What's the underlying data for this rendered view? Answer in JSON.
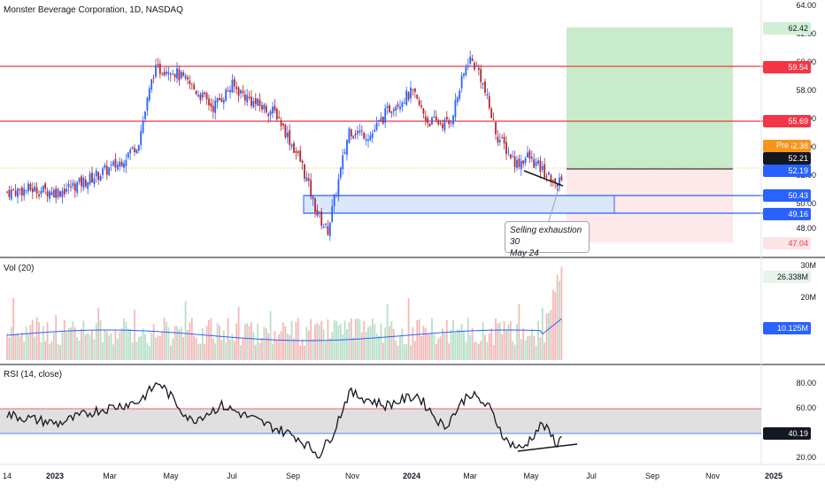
{
  "header": {
    "title": "Monster Beverage Corporation, 1D, NASDAQ"
  },
  "panes": {
    "volume_label": "Vol (20)",
    "rsi_label": "RSI (14, close)"
  },
  "price_axis": {
    "ticks": [
      "64.00",
      "62.00",
      "60.00",
      "58.00",
      "56.00",
      "54.00",
      "52.00",
      "50.00",
      "48.00"
    ],
    "tags": [
      {
        "text": "62.42",
        "color": "#d1f0d6",
        "fg": "#131722"
      },
      {
        "text": "59.54",
        "color": "#f23645",
        "fg": "#ffffff"
      },
      {
        "text": "55.69",
        "color": "#f23645",
        "fg": "#ffffff"
      },
      {
        "text": "52.38",
        "color": "#f7941d",
        "fg": "#ffffff"
      },
      {
        "text": "52.21",
        "color": "#131722",
        "fg": "#ffffff"
      },
      {
        "text": "52.19",
        "color": "#2962ff",
        "fg": "#ffffff"
      },
      {
        "text": "50.43",
        "color": "#2962ff",
        "fg": "#ffffff"
      },
      {
        "text": "49.16",
        "color": "#2962ff",
        "fg": "#ffffff"
      },
      {
        "text": "47.04",
        "color": "#fde4e4",
        "fg": "#f23645"
      }
    ],
    "pre_label": "Pre"
  },
  "volume_axis": {
    "ticks": [
      "30M",
      "20M"
    ],
    "tags": [
      {
        "text": "26.338M",
        "color": "#e6f4ea",
        "fg": "#131722"
      },
      {
        "text": "10.125M",
        "color": "#2962ff",
        "fg": "#ffffff"
      }
    ]
  },
  "rsi_axis": {
    "ticks": [
      "80.00",
      "60.00",
      "20.00"
    ],
    "tags": [
      {
        "text": "40.19",
        "color": "#131722",
        "fg": "#ffffff"
      }
    ]
  },
  "time_axis": {
    "labels": [
      "14",
      "2023",
      "Mar",
      "May",
      "Jul",
      "Sep",
      "Nov",
      "2024",
      "Mar",
      "May",
      "Jul",
      "Sep",
      "Nov",
      "2025"
    ]
  },
  "annotation": {
    "line1": "Selling exhaustion 30",
    "line2": "May 24"
  },
  "colors": {
    "up": "#2962ff",
    "down": "#b22833",
    "resistance": "#f23645",
    "support": "#2962ff",
    "target_zone": "#c8ebcb",
    "stop_zone": "#fde9e9",
    "rsi_band": "#e0e0e0",
    "volume_ma": "#2962ff"
  },
  "chart_data": [
    {
      "type": "candlestick",
      "title": "Monster Beverage Corporation, 1D, NASDAQ",
      "ylim": [
        46,
        64
      ],
      "x_range": [
        "2022-11",
        "2025-01"
      ],
      "close_path": [
        {
          "d": "2022-12-14",
          "c": 51.0
        },
        {
          "d": "2023-01-05",
          "c": 51.2
        },
        {
          "d": "2023-02-01",
          "c": 51.0
        },
        {
          "d": "2023-03-01",
          "c": 51.8
        },
        {
          "d": "2023-04-01",
          "c": 53.0
        },
        {
          "d": "2023-04-20",
          "c": 54.5
        },
        {
          "d": "2023-05-05",
          "c": 59.5
        },
        {
          "d": "2023-05-20",
          "c": 59.8
        },
        {
          "d": "2023-06-10",
          "c": 58.5
        },
        {
          "d": "2023-07-01",
          "c": 57.0
        },
        {
          "d": "2023-07-20",
          "c": 58.5
        },
        {
          "d": "2023-08-10",
          "c": 57.3
        },
        {
          "d": "2023-09-01",
          "c": 56.5
        },
        {
          "d": "2023-09-25",
          "c": 53.0
        },
        {
          "d": "2023-10-10",
          "c": 49.5
        },
        {
          "d": "2023-10-20",
          "c": 48.2
        },
        {
          "d": "2023-11-01",
          "c": 52.2
        },
        {
          "d": "2023-11-10",
          "c": 55.4
        },
        {
          "d": "2023-12-01",
          "c": 55.0
        },
        {
          "d": "2023-12-20",
          "c": 57.0
        },
        {
          "d": "2024-01-10",
          "c": 58.0
        },
        {
          "d": "2024-01-25",
          "c": 56.0
        },
        {
          "d": "2024-02-15",
          "c": 55.8
        },
        {
          "d": "2024-03-05",
          "c": 60.5
        },
        {
          "d": "2024-03-15",
          "c": 59.5
        },
        {
          "d": "2024-04-01",
          "c": 55.0
        },
        {
          "d": "2024-04-20",
          "c": 53.0
        },
        {
          "d": "2024-05-01",
          "c": 53.5
        },
        {
          "d": "2024-05-15",
          "c": 52.5
        },
        {
          "d": "2024-05-30",
          "c": 51.5
        },
        {
          "d": "2024-06-04",
          "c": 52.2
        }
      ],
      "levels": [
        {
          "name": "target",
          "value": 62.42
        },
        {
          "name": "resistance",
          "value": 59.54
        },
        {
          "name": "resistance",
          "value": 55.69
        },
        {
          "name": "entry",
          "value": 52.21
        },
        {
          "name": "support",
          "value": 50.43
        },
        {
          "name": "support",
          "value": 49.16
        },
        {
          "name": "stop",
          "value": 47.04
        }
      ]
    },
    {
      "type": "bar",
      "title": "Vol (20)",
      "ylim": [
        0,
        30
      ],
      "last_volume_m": 26.338,
      "volume_ma_m": 10.125
    },
    {
      "type": "line",
      "title": "RSI (14, close)",
      "ylim": [
        20,
        80
      ],
      "band": [
        40,
        60
      ],
      "last_value": 40.19,
      "path": [
        {
          "d": "2022-12-14",
          "v": 55
        },
        {
          "d": "2023-02-01",
          "v": 48
        },
        {
          "d": "2023-03-10",
          "v": 58
        },
        {
          "d": "2023-04-20",
          "v": 65
        },
        {
          "d": "2023-05-10",
          "v": 80
        },
        {
          "d": "2023-06-10",
          "v": 50
        },
        {
          "d": "2023-07-10",
          "v": 62
        },
        {
          "d": "2023-08-20",
          "v": 48
        },
        {
          "d": "2023-09-20",
          "v": 38
        },
        {
          "d": "2023-10-12",
          "v": 24
        },
        {
          "d": "2023-10-25",
          "v": 40
        },
        {
          "d": "2023-11-10",
          "v": 72
        },
        {
          "d": "2023-12-15",
          "v": 62
        },
        {
          "d": "2024-01-15",
          "v": 70
        },
        {
          "d": "2024-02-10",
          "v": 45
        },
        {
          "d": "2024-03-05",
          "v": 72
        },
        {
          "d": "2024-03-25",
          "v": 60
        },
        {
          "d": "2024-04-10",
          "v": 35
        },
        {
          "d": "2024-04-25",
          "v": 28
        },
        {
          "d": "2024-05-15",
          "v": 48
        },
        {
          "d": "2024-05-30",
          "v": 32
        },
        {
          "d": "2024-06-04",
          "v": 40.19
        }
      ]
    }
  ]
}
